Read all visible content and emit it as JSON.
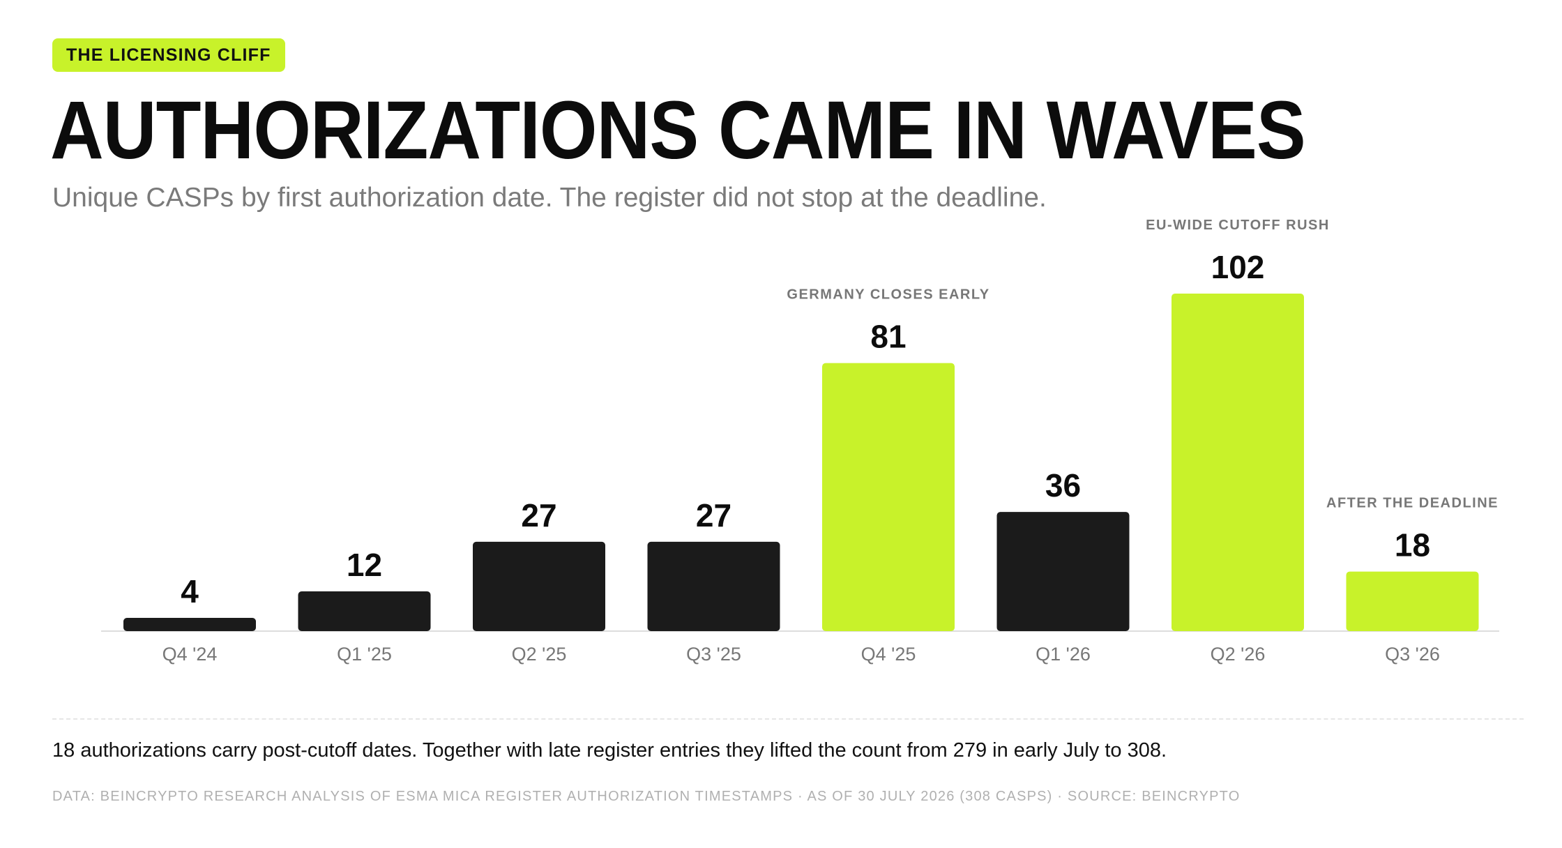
{
  "header": {
    "tag": "THE LICENSING CLIFF",
    "title": "AUTHORIZATIONS CAME IN WAVES",
    "subtitle": "Unique CASPs by first authorization date. The register did not stop at the deadline."
  },
  "chart_data": {
    "type": "bar",
    "categories": [
      "Q4 '24",
      "Q1 '25",
      "Q2 '25",
      "Q3 '25",
      "Q4 '25",
      "Q1 '26",
      "Q2 '26",
      "Q3 '26"
    ],
    "values": [
      4,
      12,
      27,
      27,
      81,
      36,
      102,
      18
    ],
    "highlighted": [
      false,
      false,
      false,
      false,
      true,
      false,
      true,
      true
    ],
    "annotations": [
      "",
      "",
      "",
      "",
      "GERMANY CLOSES EARLY",
      "",
      "EU-WIDE CUTOFF RUSH",
      "AFTER THE DEADLINE"
    ],
    "colors": {
      "default": "#1b1b1b",
      "highlight": "#c8f22a",
      "annotation": "#777777",
      "axis": "#dddddd",
      "tick": "#777777"
    },
    "ylim": [
      0,
      102
    ],
    "grid": false,
    "legend": "none"
  },
  "footer": {
    "note": "18 authorizations carry post-cutoff dates. Together with late register entries they lifted the count from 279 in early July to 308.",
    "source": "DATA: BEINCRYPTO RESEARCH ANALYSIS OF ESMA MICA REGISTER AUTHORIZATION TIMESTAMPS · AS OF 30 JULY 2026 (308 CASPS) · SOURCE: BEINCRYPTO"
  }
}
